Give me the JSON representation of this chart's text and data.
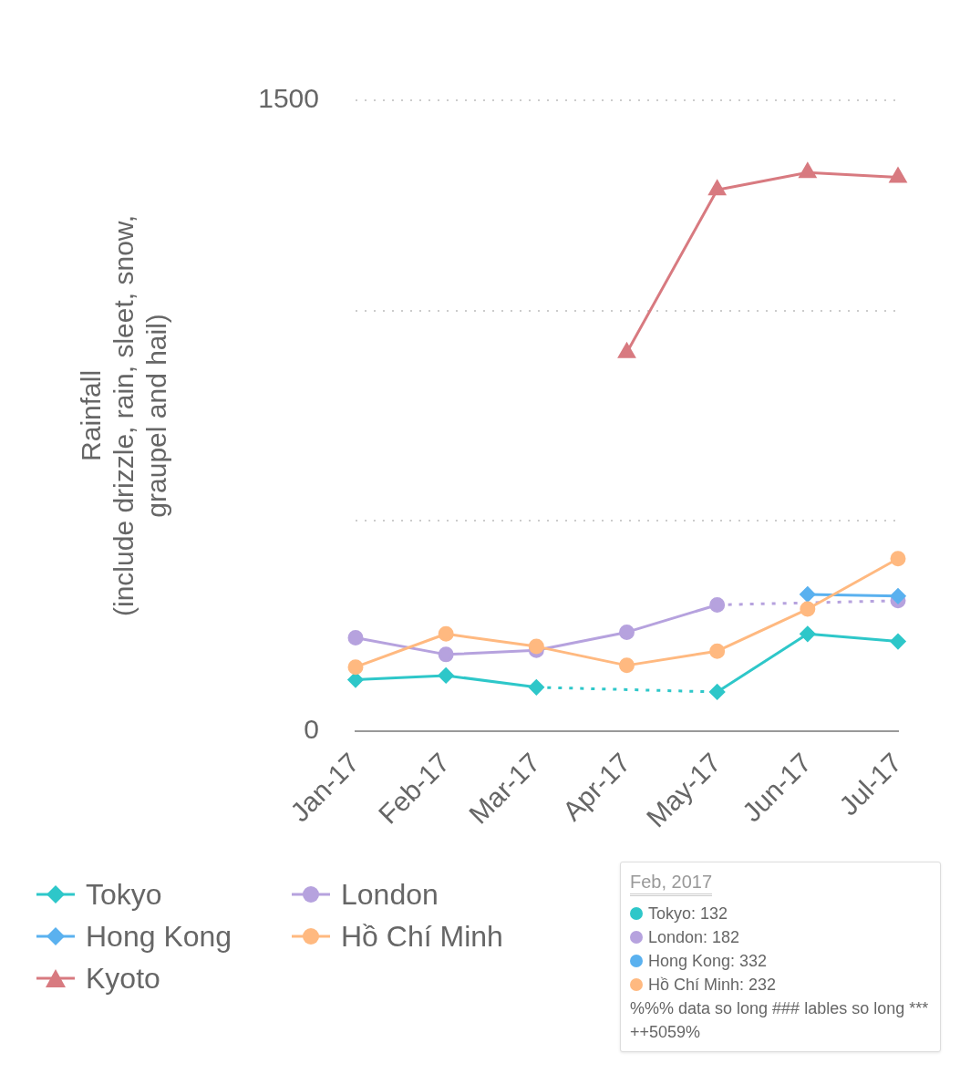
{
  "chart_data": {
    "type": "line",
    "ylabel": "Rainfall (include drizzle, rain, sleet, snow, graupel and hail)",
    "categories": [
      "Jan-17",
      "Feb-17",
      "Mar-17",
      "Apr-17",
      "May-17",
      "Jun-17",
      "Jul-17"
    ],
    "series": [
      {
        "name": "Tokyo",
        "color": "#2ec7c9",
        "marker": "diamond",
        "values": [
          122,
          132,
          104,
          null,
          93,
          231,
          213
        ]
      },
      {
        "name": "London",
        "color": "#b6a2de",
        "marker": "circle",
        "values": [
          222,
          182,
          192,
          235,
          300,
          null,
          310
        ]
      },
      {
        "name": "Hong Kong",
        "color": "#5ab1ef",
        "marker": "diamond",
        "values": [
          null,
          null,
          null,
          null,
          null,
          325,
          321
        ]
      },
      {
        "name": "Hồ Chí Minh",
        "color": "#ffb980",
        "marker": "circle",
        "values": [
          152,
          231,
          201,
          156,
          190,
          290,
          410
        ]
      },
      {
        "name": "Kyoto",
        "color": "#d87a80",
        "marker": "triangle",
        "values": [
          null,
          null,
          null,
          900,
          1287,
          1328,
          1317
        ]
      }
    ],
    "ylim": [
      0,
      1500
    ],
    "yticks": [
      0,
      {
        "value": 500,
        "label": null
      },
      {
        "value": 1000,
        "label": null
      },
      1500
    ],
    "grid": "y",
    "legend": "bottom",
    "line_style": "solid",
    "annotations": [
      "Feb, 2017",
      "Tokyo: 132",
      "London: 182",
      "Hong Kong: 332",
      "Hồ Chí Minh: 232",
      "%%% data so long ### lables so long *** ++5059%"
    ]
  }
}
